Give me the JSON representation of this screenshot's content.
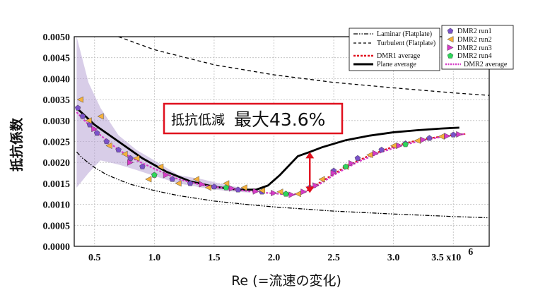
{
  "chart_data": {
    "type": "line",
    "xlabel": "Re (=流速の変化)",
    "x_tick_labels": [
      "0.5",
      "1.0",
      "1.5",
      "2.0",
      "2.5",
      "3.0",
      "3.5 x10"
    ],
    "x_exponent": "6",
    "xlim": [
      0.33,
      3.8
    ],
    "ylabel": "抵抗係数",
    "y_tick_labels": [
      "0.0000",
      "0.0005",
      "0.0010",
      "0.0015",
      "0.0020",
      "0.0025",
      "0.0030",
      "0.0035",
      "0.0040",
      "0.0045",
      "0.0050"
    ],
    "ylim": [
      0,
      0.005
    ],
    "grid": true,
    "annotation": {
      "prefix": "抵抗低減",
      "value": "最大43.6%",
      "color": "#e0101e",
      "arrow_x": 2.3,
      "arrow_from": 0.00225,
      "arrow_to": 0.00127
    },
    "series": [
      {
        "name": "Laminar (Flatplate)",
        "style": "dashdot",
        "color": "#000000",
        "x": [
          0.35,
          0.4,
          0.5,
          0.6,
          0.7,
          0.8,
          1.0,
          1.2,
          1.5,
          1.8,
          2.0,
          2.5,
          3.0,
          3.5,
          3.8
        ],
        "y": [
          0.00225,
          0.0021,
          0.00188,
          0.00171,
          0.00159,
          0.00148,
          0.00133,
          0.00121,
          0.00108,
          0.00099,
          0.00094,
          0.00084,
          0.00077,
          0.00071,
          0.00068
        ]
      },
      {
        "name": "Turbulent (Flatplate)",
        "style": "dashed",
        "color": "#000000",
        "x": [
          0.7,
          1.0,
          1.5,
          2.0,
          2.5,
          3.0,
          3.5,
          3.8
        ],
        "y": [
          0.005,
          0.00469,
          0.00433,
          0.00409,
          0.00391,
          0.00378,
          0.00366,
          0.0036
        ]
      },
      {
        "name": "DMR1 average",
        "style": "dotted",
        "color": "#e0101e",
        "x": [
          2.25,
          2.4,
          2.6,
          2.8,
          3.0,
          3.2,
          3.4,
          3.6
        ],
        "y": [
          0.00128,
          0.00155,
          0.0019,
          0.00217,
          0.00238,
          0.00253,
          0.00262,
          0.00268
        ]
      },
      {
        "name": "Plane average",
        "style": "solid",
        "color": "#000000",
        "x": [
          0.35,
          0.5,
          0.7,
          0.9,
          1.1,
          1.3,
          1.5,
          1.7,
          1.85,
          1.95,
          2.05,
          2.15,
          2.2,
          2.3,
          2.4,
          2.6,
          2.8,
          3.0,
          3.2,
          3.4,
          3.55
        ],
        "y": [
          0.0033,
          0.0029,
          0.0025,
          0.0021,
          0.00178,
          0.00155,
          0.00142,
          0.00135,
          0.00135,
          0.00145,
          0.0017,
          0.002,
          0.00215,
          0.00225,
          0.00236,
          0.00253,
          0.00264,
          0.00272,
          0.00277,
          0.00281,
          0.00283
        ]
      },
      {
        "name": "DMR2 run1",
        "style": "marker",
        "marker": "pentagon",
        "color": "#7b52c8",
        "x": [
          0.36,
          0.4,
          0.46,
          0.52,
          0.6,
          0.7,
          0.8,
          0.9,
          1.0,
          1.15,
          1.3,
          1.5,
          1.7,
          1.9,
          2.1,
          2.3,
          2.5,
          2.7,
          2.9,
          3.1,
          3.3,
          3.5
        ],
        "y": [
          0.0033,
          0.0031,
          0.0029,
          0.0027,
          0.0025,
          0.0023,
          0.0021,
          0.0019,
          0.0017,
          0.0016,
          0.0015,
          0.00142,
          0.00135,
          0.0013,
          0.00125,
          0.0014,
          0.0018,
          0.0021,
          0.0023,
          0.00245,
          0.00258,
          0.00266
        ]
      },
      {
        "name": "DMR2 run2",
        "style": "marker",
        "marker": "triangle-left",
        "color": "#f4b13c",
        "x": [
          0.38,
          0.45,
          0.55,
          0.62,
          0.75,
          0.85,
          0.95,
          1.05,
          1.2,
          1.35,
          1.45,
          1.6,
          1.75,
          1.9,
          2.05,
          2.2,
          2.4,
          2.6,
          2.8,
          3.0,
          3.2,
          3.4
        ],
        "y": [
          0.0035,
          0.003,
          0.0031,
          0.0024,
          0.0022,
          0.0021,
          0.0016,
          0.0019,
          0.0015,
          0.0016,
          0.0014,
          0.0015,
          0.0014,
          0.00133,
          0.0013,
          0.00125,
          0.0016,
          0.0019,
          0.00218,
          0.0024,
          0.00252,
          0.00262
        ]
      },
      {
        "name": "DMR2 run3",
        "style": "marker",
        "marker": "triangle-right",
        "color": "#d63bc7",
        "x": [
          0.5,
          0.8,
          1.1,
          1.4,
          1.65,
          1.85,
          2.0,
          2.15,
          2.25,
          2.35,
          2.5,
          2.65,
          2.85,
          3.05,
          3.25,
          3.45,
          3.55
        ],
        "y": [
          0.0028,
          0.002,
          0.0017,
          0.00148,
          0.00138,
          0.00131,
          0.00127,
          0.00123,
          0.0013,
          0.00145,
          0.00175,
          0.00198,
          0.00222,
          0.0024,
          0.00254,
          0.00263,
          0.00267
        ]
      },
      {
        "name": "DMR2 run4",
        "style": "marker",
        "marker": "pentagon",
        "color": "#2fd65a",
        "x": [
          1.0,
          1.6,
          2.1,
          2.6,
          3.1
        ],
        "y": [
          0.0017,
          0.0014,
          0.00125,
          0.0019,
          0.00243
        ]
      },
      {
        "name": "DMR2 average",
        "style": "dotted",
        "color": "#d63bc7",
        "band_color": "#b8a4d6",
        "x": [
          0.35,
          0.45,
          0.55,
          0.7,
          0.85,
          1.0,
          1.2,
          1.4,
          1.6,
          1.8,
          2.0,
          2.15,
          2.25,
          2.35,
          2.5,
          2.7,
          2.9,
          3.1,
          3.3,
          3.5,
          3.6
        ],
        "y": [
          0.0032,
          0.0029,
          0.00265,
          0.0023,
          0.00205,
          0.00185,
          0.0016,
          0.00146,
          0.00138,
          0.00131,
          0.00126,
          0.00123,
          0.00128,
          0.00142,
          0.0017,
          0.00201,
          0.00225,
          0.00243,
          0.00256,
          0.00265,
          0.00268
        ],
        "band_x": [
          0.35,
          0.45,
          0.55,
          0.7,
          0.85,
          1.0,
          1.2,
          1.4,
          1.6,
          1.8
        ],
        "band_upper": [
          0.005,
          0.0039,
          0.0033,
          0.00265,
          0.0023,
          0.00205,
          0.0017,
          0.0016,
          0.00146,
          0.00136
        ],
        "band_lower": [
          0.0014,
          0.00175,
          0.00205,
          0.00195,
          0.00182,
          0.00168,
          0.0015,
          0.0014,
          0.00132,
          0.00128
        ]
      }
    ],
    "legend": [
      {
        "placement": "top-right-left",
        "items": [
          "Laminar (Flatplate)",
          "Turbulent (Flatplate)",
          "DMR1 average",
          "Plane average"
        ]
      },
      {
        "placement": "top-right",
        "items": [
          "DMR2 run1",
          "DMR2 run2",
          "DMR2 run3",
          "DMR2 run4",
          "DMR2 average"
        ]
      }
    ]
  }
}
